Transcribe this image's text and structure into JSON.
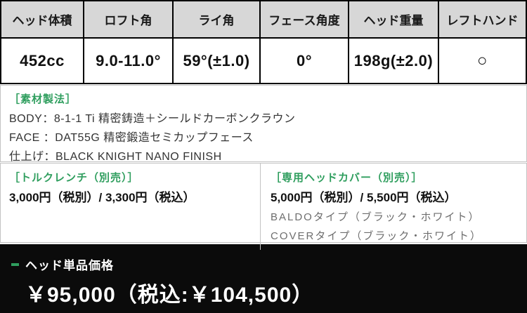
{
  "spec_table": {
    "columns": [
      {
        "header": "ヘッド体積",
        "value": "452cc"
      },
      {
        "header": "ロフト角",
        "value": "9.0-11.0°"
      },
      {
        "header": "ライ角",
        "value": "59°(±1.0)"
      },
      {
        "header": "フェース角度",
        "value": "0°"
      },
      {
        "header": "ヘッド重量",
        "value": "198g(±2.0)"
      },
      {
        "header": "レフトハンド",
        "value": "○"
      }
    ]
  },
  "material": {
    "label": "［素材製法］",
    "lines": [
      "BODY：8-1-1 Ti 精密鋳造＋シールドカーボンクラウン",
      "FACE ：DAT55G 精密鍛造セミカップフェース",
      "仕上げ：BLACK KNIGHT NANO FINISH"
    ]
  },
  "torque_wrench": {
    "label": "［トルクレンチ（別売）］",
    "price": "3,000円（税別）/ 3,300円（税込）"
  },
  "head_cover": {
    "label": "［専用ヘッドカバー（別売）］",
    "price": "5,000円（税別）/ 5,500円（税込）",
    "options": [
      "BALDOタイプ（ブラック・ホワイト）",
      "COVERタイプ（ブラック・ホワイト）"
    ]
  },
  "price_bar": {
    "label": "ヘッド単品価格",
    "price": "￥95,000（税込:￥104,500）"
  },
  "colors": {
    "accent_green": "#2f9e5e",
    "header_bg": "#d7d7d7",
    "bar_bg": "#0b0b0b",
    "border_black": "#000000",
    "border_gray": "#c3c3c3"
  }
}
